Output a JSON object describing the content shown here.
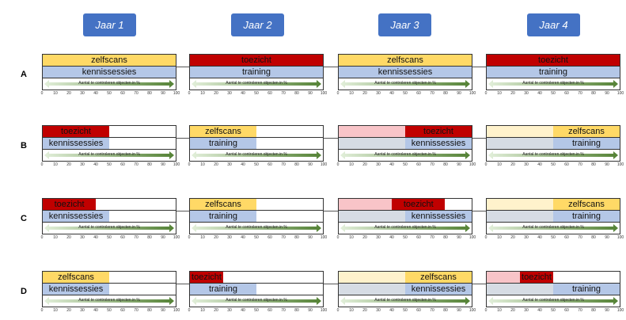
{
  "years": [
    "Jaar 1",
    "Jaar 2",
    "Jaar 3",
    "Jaar 4"
  ],
  "axis_label": "Aantal te controleren objecten in %",
  "ticks": [
    "0",
    "10",
    "20",
    "30",
    "40",
    "50",
    "60",
    "70",
    "80",
    "90",
    "100"
  ],
  "colors": {
    "zelfscans": "#FFD966",
    "toezicht": "#C00000",
    "blue": "#B4C7E7",
    "pink": "#F8C4C8",
    "paleyellow": "#FFF2CC",
    "grey": "#D6DCE4",
    "arrow": "#548235"
  },
  "rows": [
    {
      "label": "A",
      "panels": [
        {
          "top": [
            {
              "from": 0,
              "to": 100,
              "color": "zelfscans",
              "text": "zelfscans"
            }
          ],
          "bottom": [
            {
              "from": 0,
              "to": 100,
              "color": "blue",
              "text": "kennissessies"
            }
          ]
        },
        {
          "top": [
            {
              "from": 0,
              "to": 100,
              "color": "toezicht",
              "text": "toezicht"
            }
          ],
          "bottom": [
            {
              "from": 0,
              "to": 100,
              "color": "blue",
              "text": "training"
            }
          ]
        },
        {
          "top": [
            {
              "from": 0,
              "to": 100,
              "color": "zelfscans",
              "text": "zelfscans"
            }
          ],
          "bottom": [
            {
              "from": 0,
              "to": 100,
              "color": "blue",
              "text": "kennissessies"
            }
          ]
        },
        {
          "top": [
            {
              "from": 0,
              "to": 100,
              "color": "toezicht",
              "text": "toezicht"
            }
          ],
          "bottom": [
            {
              "from": 0,
              "to": 100,
              "color": "blue",
              "text": "training"
            }
          ]
        }
      ]
    },
    {
      "label": "B",
      "panels": [
        {
          "top": [
            {
              "from": 0,
              "to": 50,
              "color": "toezicht",
              "text": "toezicht"
            }
          ],
          "bottom": [
            {
              "from": 0,
              "to": 50,
              "color": "blue",
              "text": "kennissessies"
            }
          ]
        },
        {
          "top": [
            {
              "from": 0,
              "to": 50,
              "color": "zelfscans",
              "text": "zelfscans"
            }
          ],
          "bottom": [
            {
              "from": 0,
              "to": 50,
              "color": "blue",
              "text": "training"
            }
          ]
        },
        {
          "top": [
            {
              "from": 0,
              "to": 50,
              "color": "pink",
              "text": ""
            },
            {
              "from": 50,
              "to": 100,
              "color": "toezicht",
              "text": "toezicht"
            }
          ],
          "bottom": [
            {
              "from": 0,
              "to": 50,
              "color": "grey",
              "text": ""
            },
            {
              "from": 50,
              "to": 100,
              "color": "blue",
              "text": "kennissessies"
            }
          ]
        },
        {
          "top": [
            {
              "from": 0,
              "to": 50,
              "color": "paleyellow",
              "text": ""
            },
            {
              "from": 50,
              "to": 100,
              "color": "zelfscans",
              "text": "zelfscans"
            }
          ],
          "bottom": [
            {
              "from": 0,
              "to": 50,
              "color": "grey",
              "text": ""
            },
            {
              "from": 50,
              "to": 100,
              "color": "blue",
              "text": "training"
            }
          ]
        }
      ]
    },
    {
      "label": "C",
      "panels": [
        {
          "top": [
            {
              "from": 0,
              "to": 40,
              "color": "toezicht",
              "text": "toezicht"
            }
          ],
          "bottom": [
            {
              "from": 0,
              "to": 50,
              "color": "blue",
              "text": "kennissessies"
            }
          ]
        },
        {
          "top": [
            {
              "from": 0,
              "to": 50,
              "color": "zelfscans",
              "text": "zelfscans"
            }
          ],
          "bottom": [
            {
              "from": 0,
              "to": 50,
              "color": "blue",
              "text": "training"
            }
          ]
        },
        {
          "top": [
            {
              "from": 0,
              "to": 40,
              "color": "pink",
              "text": ""
            },
            {
              "from": 40,
              "to": 80,
              "color": "toezicht",
              "text": "toezicht"
            }
          ],
          "bottom": [
            {
              "from": 0,
              "to": 50,
              "color": "grey",
              "text": ""
            },
            {
              "from": 50,
              "to": 100,
              "color": "blue",
              "text": "kennissessies"
            }
          ]
        },
        {
          "top": [
            {
              "from": 0,
              "to": 50,
              "color": "paleyellow",
              "text": ""
            },
            {
              "from": 50,
              "to": 100,
              "color": "zelfscans",
              "text": "zelfscans"
            }
          ],
          "bottom": [
            {
              "from": 0,
              "to": 50,
              "color": "grey",
              "text": ""
            },
            {
              "from": 50,
              "to": 100,
              "color": "blue",
              "text": "training"
            }
          ]
        }
      ]
    },
    {
      "label": "D",
      "panels": [
        {
          "top": [
            {
              "from": 0,
              "to": 50,
              "color": "zelfscans",
              "text": "zelfscans"
            }
          ],
          "bottom": [
            {
              "from": 0,
              "to": 50,
              "color": "blue",
              "text": "kennissessies"
            }
          ]
        },
        {
          "top": [
            {
              "from": 0,
              "to": 25,
              "color": "toezicht",
              "text": "toezicht"
            }
          ],
          "bottom": [
            {
              "from": 0,
              "to": 50,
              "color": "blue",
              "text": "training"
            }
          ]
        },
        {
          "top": [
            {
              "from": 0,
              "to": 50,
              "color": "paleyellow",
              "text": ""
            },
            {
              "from": 50,
              "to": 100,
              "color": "zelfscans",
              "text": "zelfscans"
            }
          ],
          "bottom": [
            {
              "from": 0,
              "to": 50,
              "color": "grey",
              "text": ""
            },
            {
              "from": 50,
              "to": 100,
              "color": "blue",
              "text": "kennissessies"
            }
          ]
        },
        {
          "top": [
            {
              "from": 0,
              "to": 25,
              "color": "pink",
              "text": ""
            },
            {
              "from": 25,
              "to": 50,
              "color": "toezicht",
              "text": "toezicht"
            }
          ],
          "bottom": [
            {
              "from": 0,
              "to": 50,
              "color": "grey",
              "text": ""
            },
            {
              "from": 50,
              "to": 100,
              "color": "blue",
              "text": "training"
            }
          ]
        }
      ]
    }
  ]
}
